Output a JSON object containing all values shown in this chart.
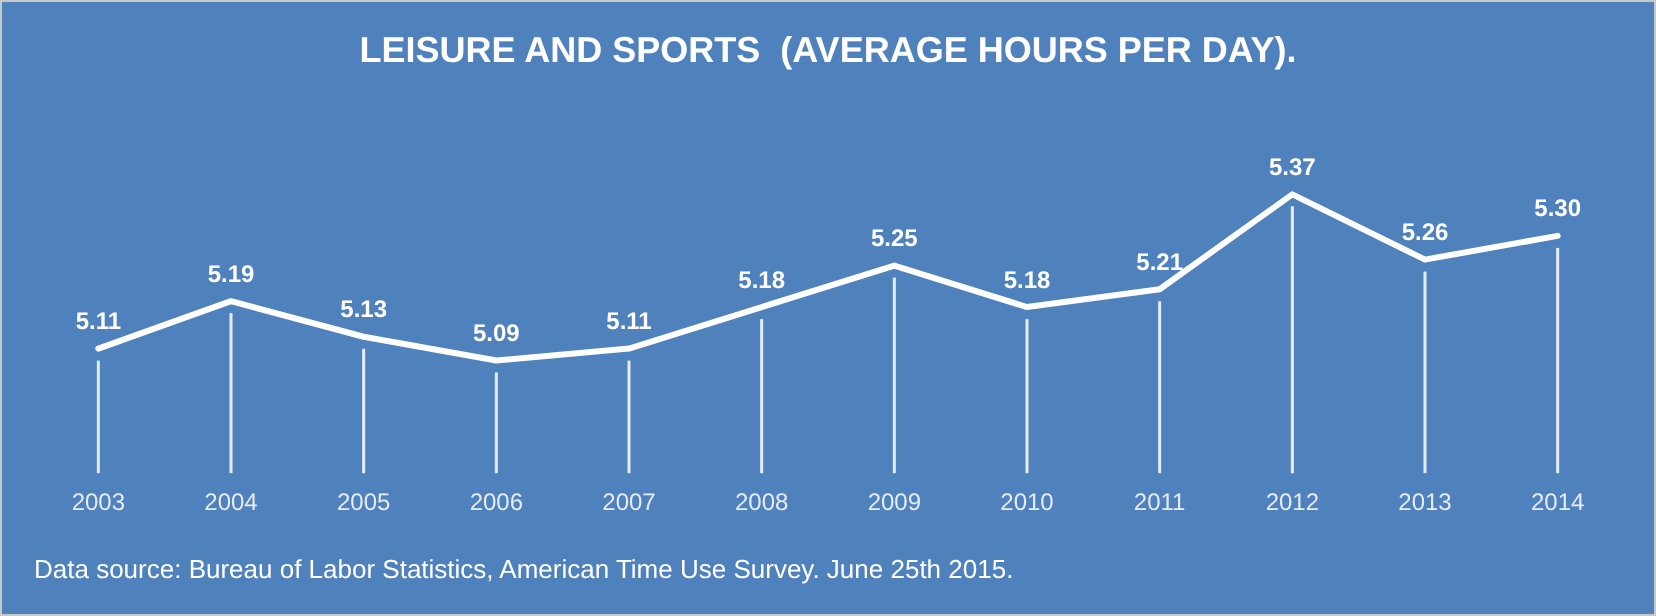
{
  "chart_data": {
    "type": "line",
    "title": "LEISURE AND SPORTS  (AVERAGE HOURS PER DAY).",
    "categories": [
      "2003",
      "2004",
      "2005",
      "2006",
      "2007",
      "2008",
      "2009",
      "2010",
      "2011",
      "2012",
      "2013",
      "2014"
    ],
    "series": [
      {
        "color": "#ffffff",
        "values": [
          5.11,
          5.19,
          5.13,
          5.09,
          5.11,
          5.18,
          5.25,
          5.18,
          5.21,
          5.37,
          5.26,
          5.3
        ],
        "value_labels": [
          "5.11",
          "5.19",
          "5.13",
          "5.09",
          "5.11",
          "5.18",
          "5.25",
          "5.18",
          "5.21",
          "5.37",
          "5.26",
          "5.30"
        ]
      }
    ],
    "tick_labels": "x",
    "grid": "x",
    "legend": false,
    "marker": "none",
    "line_style": "solid",
    "annotations": [
      "Data source: Bureau of Labor Statistics, American Time Use Survey. June 25th 2015."
    ]
  }
}
